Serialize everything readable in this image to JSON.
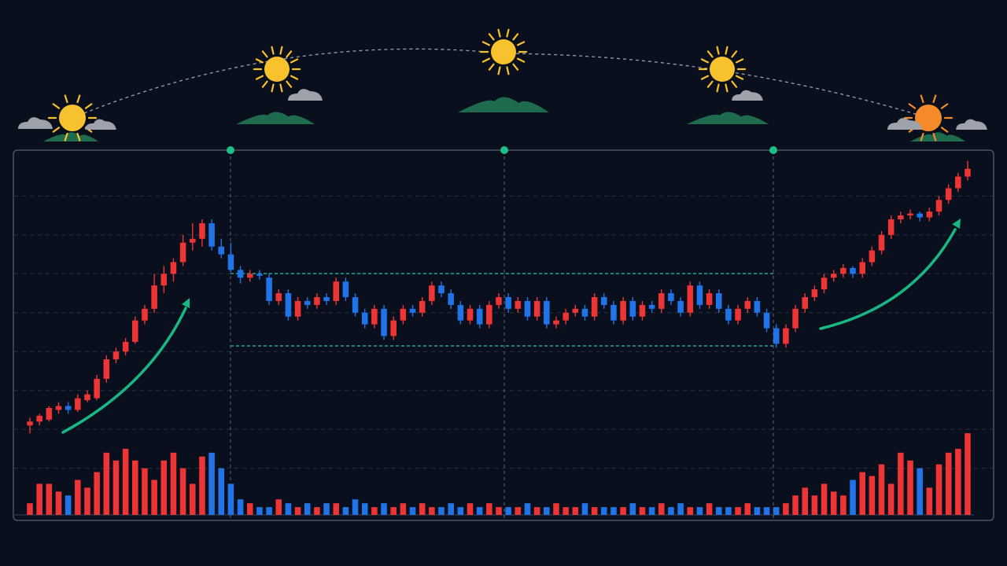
{
  "chart_data": {
    "type": "candlestick",
    "ohlc": [
      [
        21,
        23,
        19,
        22
      ],
      [
        22,
        24,
        21,
        23.5
      ],
      [
        22.5,
        26,
        22,
        25.5
      ],
      [
        25,
        27,
        24,
        26
      ],
      [
        26,
        27,
        24,
        25
      ],
      [
        25,
        29,
        24.5,
        28
      ],
      [
        27.5,
        30,
        27,
        29
      ],
      [
        28,
        34,
        27.5,
        33
      ],
      [
        33,
        39,
        32,
        38
      ],
      [
        38,
        41,
        37,
        40
      ],
      [
        40,
        43.5,
        39,
        42.5
      ],
      [
        42.5,
        49,
        42,
        48
      ],
      [
        48,
        52,
        47,
        51
      ],
      [
        51,
        60,
        50,
        57
      ],
      [
        57,
        62,
        55,
        60
      ],
      [
        60,
        64,
        58,
        63
      ],
      [
        63,
        70,
        62,
        68
      ],
      [
        68,
        73,
        66,
        69
      ],
      [
        69,
        74,
        67,
        73
      ],
      [
        73,
        74,
        66,
        67
      ],
      [
        67,
        69,
        64,
        65
      ],
      [
        65,
        68,
        60.5,
        61
      ],
      [
        61,
        62,
        57.5,
        59
      ],
      [
        59,
        61,
        58,
        60
      ],
      [
        60,
        61,
        58.5,
        59.5
      ],
      [
        59,
        60,
        52,
        53
      ],
      [
        53,
        56,
        52,
        55
      ],
      [
        55,
        56,
        48,
        49
      ],
      [
        49,
        54,
        48,
        53
      ],
      [
        53,
        54,
        51,
        52
      ],
      [
        52,
        55,
        51,
        54
      ],
      [
        54,
        55,
        52,
        53
      ],
      [
        53,
        59,
        52,
        58
      ],
      [
        58,
        59,
        53,
        54
      ],
      [
        54,
        55,
        49,
        50
      ],
      [
        50,
        51,
        46,
        47
      ],
      [
        47,
        52,
        46,
        51
      ],
      [
        51,
        52,
        43,
        44
      ],
      [
        44,
        49,
        43,
        48
      ],
      [
        48,
        52,
        47,
        51
      ],
      [
        51,
        52,
        49,
        50
      ],
      [
        50,
        54,
        49,
        53
      ],
      [
        53,
        58,
        52,
        57
      ],
      [
        57,
        58,
        54,
        55
      ],
      [
        55,
        56,
        51,
        52
      ],
      [
        52,
        53,
        47,
        48
      ],
      [
        48,
        52,
        47,
        51
      ],
      [
        51,
        52,
        46,
        47
      ],
      [
        47,
        53,
        46,
        52
      ],
      [
        52,
        55,
        51,
        54
      ],
      [
        54,
        55,
        50,
        51
      ],
      [
        51,
        54,
        50,
        53
      ],
      [
        53,
        54,
        48,
        49
      ],
      [
        49,
        54,
        48,
        53
      ],
      [
        53,
        54,
        46,
        47
      ],
      [
        47,
        49,
        46,
        48
      ],
      [
        48,
        51,
        47,
        50
      ],
      [
        50,
        52,
        49,
        51
      ],
      [
        51,
        52,
        48,
        49
      ],
      [
        49,
        55,
        48,
        54
      ],
      [
        54,
        55,
        51,
        52
      ],
      [
        52,
        53,
        47,
        48
      ],
      [
        48,
        54,
        47,
        53
      ],
      [
        53,
        54,
        48,
        49
      ],
      [
        49,
        53,
        48,
        52
      ],
      [
        52,
        53,
        50,
        51
      ],
      [
        51,
        56,
        50,
        55
      ],
      [
        55,
        56,
        52,
        53
      ],
      [
        53,
        54,
        49,
        50
      ],
      [
        50,
        58,
        49,
        57
      ],
      [
        57,
        58,
        51,
        52
      ],
      [
        52,
        56,
        51,
        55
      ],
      [
        55,
        56,
        50,
        51
      ],
      [
        51,
        52,
        47,
        48
      ],
      [
        48,
        52,
        47,
        51
      ],
      [
        51,
        54,
        50,
        53
      ],
      [
        53,
        54,
        49,
        50
      ],
      [
        50,
        51,
        45,
        46
      ],
      [
        46,
        47,
        41,
        42
      ],
      [
        42,
        47,
        41,
        46
      ],
      [
        46,
        52,
        45,
        51
      ],
      [
        51,
        55,
        50,
        54
      ],
      [
        54,
        57,
        53,
        56
      ],
      [
        56,
        60,
        55,
        59
      ],
      [
        59,
        61,
        58,
        60
      ],
      [
        60,
        62.5,
        59,
        61.5
      ],
      [
        61.5,
        62,
        59,
        60
      ],
      [
        60,
        64,
        59,
        63
      ],
      [
        63,
        67,
        62,
        66
      ],
      [
        66,
        71,
        65,
        70
      ],
      [
        70,
        75,
        69,
        74
      ],
      [
        74,
        76,
        73,
        75
      ],
      [
        75,
        76.5,
        74,
        75.5
      ],
      [
        75.5,
        76,
        73.5,
        74.5
      ],
      [
        74.5,
        77,
        73.5,
        76
      ],
      [
        76,
        80,
        75,
        79
      ],
      [
        79,
        83,
        78,
        82
      ],
      [
        82,
        86,
        81,
        85
      ],
      [
        85,
        89,
        84,
        87
      ]
    ],
    "volume": [
      3,
      8,
      8,
      6,
      5,
      9,
      7,
      11,
      16,
      14,
      17,
      14,
      12,
      9,
      14,
      16,
      12,
      8,
      15,
      16,
      12,
      8,
      4,
      3,
      2,
      2,
      4,
      3,
      2,
      3,
      2,
      3,
      3,
      2,
      4,
      3,
      2,
      3,
      2,
      3,
      2,
      3,
      2,
      2,
      3,
      2,
      3,
      2,
      3,
      2,
      2,
      2,
      3,
      2,
      2,
      3,
      2,
      2,
      3,
      2,
      2,
      2,
      2,
      3,
      2,
      2,
      3,
      2,
      3,
      2,
      2,
      3,
      2,
      2,
      2,
      3,
      2,
      2,
      2,
      3,
      5,
      7,
      5,
      8,
      6,
      5,
      9,
      11,
      10,
      13,
      8,
      16,
      14,
      12,
      7,
      13,
      16,
      17,
      21
    ],
    "up_color": "#ee3535",
    "down_color": "#2174e8",
    "ylim": [
      -2,
      92
    ],
    "yticks": [
      10,
      20,
      30,
      40,
      50,
      60,
      70,
      80
    ],
    "y2lim": [
      0,
      94
    ],
    "grid": true
  }
}
